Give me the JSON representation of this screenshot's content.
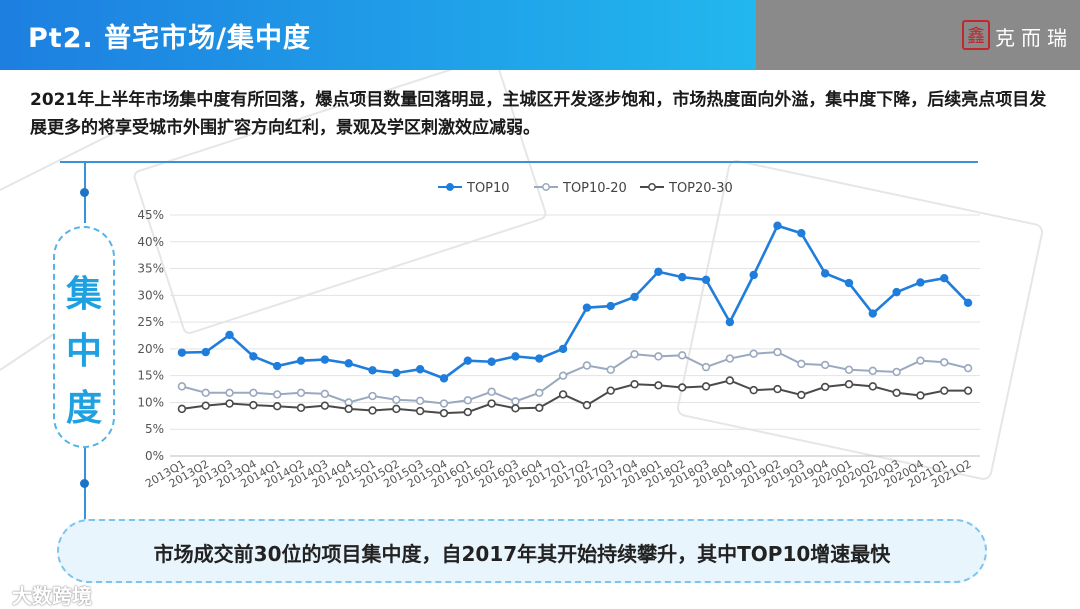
{
  "header": {
    "title": "Pt2. 普宅市场/集中度",
    "logo_mark": "鑫",
    "logo_text": "克而瑞"
  },
  "intro_text": "2021年上半年市场集中度有所回落，爆点项目数量回落明显，主城区开发逐步饱和，市场热度面向外溢，集中度下降，后续亮点项目发展更多的将享受城市外围扩容方向红利，景观及学区刺激效应减弱。",
  "side_label": [
    "集",
    "中",
    "度"
  ],
  "conclusion": "市场成交前30位的项目集中度，自2017年其开始持续攀升，其中TOP10增速最快",
  "watermark": "大数跨境",
  "colors": {
    "accent": "#1f7ddb",
    "series_top10": "#1f7ddb",
    "series_top10_20": "#9aa8c0",
    "series_top20_30": "#4a4a4a"
  },
  "chart_data": {
    "type": "line",
    "ylim": [
      0,
      45
    ],
    "yticks": [
      "0%",
      "5%",
      "10%",
      "15%",
      "20%",
      "25%",
      "30%",
      "35%",
      "40%",
      "45%"
    ],
    "ytick_values": [
      0,
      5,
      10,
      15,
      20,
      25,
      30,
      35,
      40,
      45
    ],
    "grid": true,
    "legend_position": "top",
    "categories": [
      "2013Q1",
      "2013Q2",
      "2013Q3",
      "2013Q4",
      "2014Q1",
      "2014Q2",
      "2014Q3",
      "2014Q4",
      "2015Q1",
      "2015Q2",
      "2015Q3",
      "2015Q4",
      "2016Q1",
      "2016Q2",
      "2016Q3",
      "2016Q4",
      "2017Q1",
      "2017Q2",
      "2017Q3",
      "2017Q4",
      "2018Q1",
      "2018Q2",
      "2018Q3",
      "2018Q4",
      "2019Q1",
      "2019Q2",
      "2019Q3",
      "2019Q4",
      "2020Q1",
      "2020Q2",
      "2020Q3",
      "2020Q4",
      "2021Q1",
      "2021Q2"
    ],
    "series": [
      {
        "name": "TOP10",
        "values": [
          19.3,
          19.4,
          22.6,
          18.6,
          16.8,
          17.8,
          18.0,
          17.3,
          16.0,
          15.5,
          16.2,
          14.5,
          17.8,
          17.6,
          18.6,
          18.2,
          20.0,
          27.7,
          28.0,
          29.7,
          34.4,
          33.4,
          32.9,
          25.0,
          33.8,
          43.0,
          41.6,
          34.1,
          32.3,
          26.6,
          30.6,
          32.4,
          33.2,
          28.6
        ]
      },
      {
        "name": "TOP10-20",
        "values": [
          13.0,
          11.8,
          11.8,
          11.8,
          11.5,
          11.8,
          11.6,
          10.0,
          11.2,
          10.5,
          10.3,
          9.8,
          10.4,
          12.0,
          10.2,
          11.8,
          15.0,
          16.9,
          16.1,
          19.0,
          18.6,
          18.8,
          16.6,
          18.2,
          19.1,
          19.4,
          17.2,
          17.0,
          16.1,
          15.9,
          15.7,
          17.8,
          17.5,
          16.4
        ]
      },
      {
        "name": "TOP20-30",
        "values": [
          8.8,
          9.4,
          9.8,
          9.5,
          9.3,
          9.0,
          9.4,
          8.8,
          8.5,
          8.8,
          8.4,
          8.0,
          8.2,
          9.8,
          8.9,
          9.0,
          11.5,
          9.5,
          12.2,
          13.4,
          13.2,
          12.8,
          13.0,
          14.1,
          12.3,
          12.5,
          11.4,
          12.9,
          13.4,
          13.0,
          11.8,
          11.3,
          12.2,
          12.2
        ]
      }
    ]
  }
}
